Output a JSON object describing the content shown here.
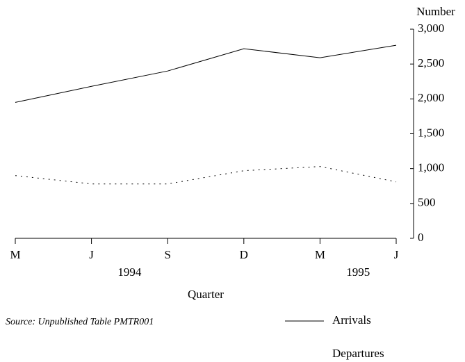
{
  "chart_data": {
    "type": "line",
    "y_axis_label": "Number",
    "x_axis_label": "Quarter",
    "source": "Source:  Unpublished Table PMTR001",
    "categories": [
      "M",
      "J",
      "S",
      "D",
      "M",
      "J"
    ],
    "year_labels": [
      "1994",
      "1995"
    ],
    "series": [
      {
        "name": "Arrivals",
        "color": "#000000",
        "style": "solid",
        "values": [
          1950,
          2180,
          2400,
          2720,
          2590,
          2770
        ]
      },
      {
        "name": "Departures",
        "color": "#000000",
        "style": "dotted",
        "values": [
          900,
          780,
          780,
          970,
          1030,
          810
        ]
      }
    ],
    "ylim": [
      0,
      3000
    ],
    "yticks": [
      0,
      500,
      {
        "value": 1000,
        "label": "1,000"
      },
      {
        "value": 1500,
        "label": "1,500"
      },
      {
        "value": 2000,
        "label": "2,000"
      },
      {
        "value": 2500,
        "label": "2,500"
      },
      {
        "value": 3000,
        "label": "3,000"
      }
    ]
  }
}
